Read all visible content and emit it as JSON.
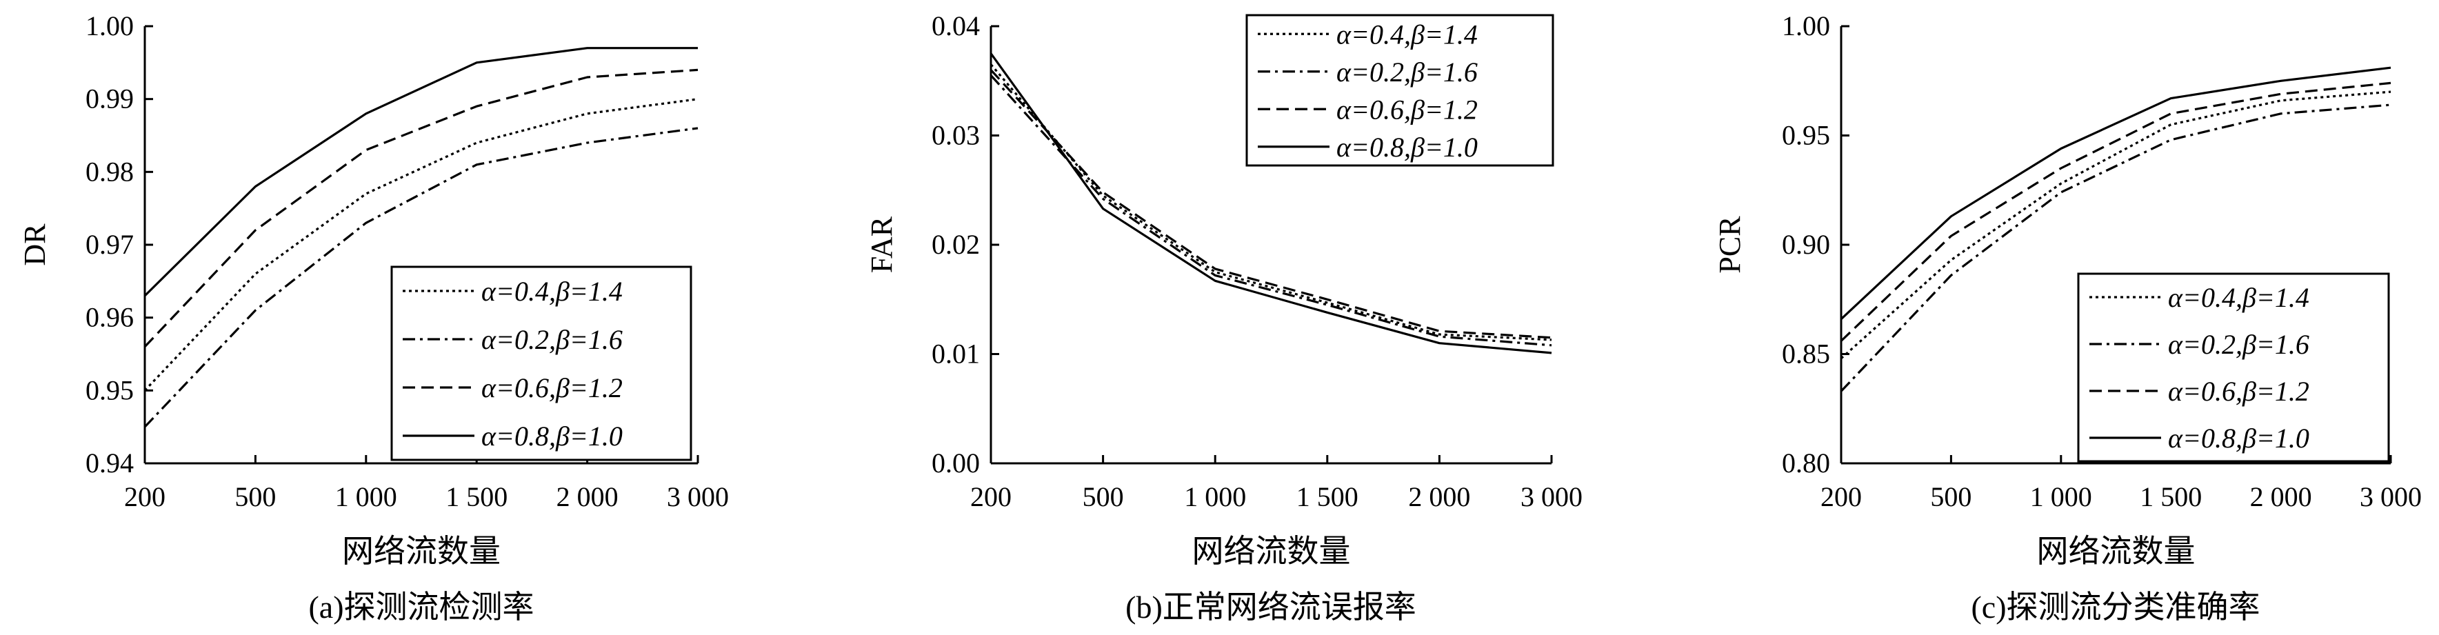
{
  "figure": {
    "background": "#ffffff",
    "line_color": "#000000"
  },
  "chart_data": [
    {
      "type": "line",
      "caption": "(a)探测流检测率",
      "xlabel": "网络流数量",
      "ylabel": "DR",
      "x": [
        "200",
        "500",
        "1 000",
        "1 500",
        "2 000",
        "3 000"
      ],
      "ylim": [
        0.94,
        1.0
      ],
      "yticks": [
        "0.94",
        "0.95",
        "0.96",
        "0.97",
        "0.98",
        "0.99",
        "1.00"
      ],
      "grid": false,
      "legend_position": "bottom-right",
      "series": [
        {
          "name": "α=0.4,β=1.4",
          "dash": "dotted",
          "values": [
            0.95,
            0.966,
            0.977,
            0.984,
            0.988,
            0.99
          ]
        },
        {
          "name": "α=0.2,β=1.6",
          "dash": "dashdot",
          "values": [
            0.945,
            0.961,
            0.973,
            0.981,
            0.984,
            0.986
          ]
        },
        {
          "name": "α=0.6,β=1.2",
          "dash": "dashed",
          "values": [
            0.956,
            0.972,
            0.983,
            0.989,
            0.993,
            0.994
          ]
        },
        {
          "name": "α=0.8,β=1.0",
          "dash": "solid",
          "values": [
            0.963,
            0.978,
            0.988,
            0.995,
            0.997,
            0.997
          ]
        }
      ]
    },
    {
      "type": "line",
      "caption": "(b)正常网络流误报率",
      "xlabel": "网络流数量",
      "ylabel": "FAR",
      "x": [
        "200",
        "500",
        "1 000",
        "1 500",
        "2 000",
        "3 000"
      ],
      "ylim": [
        0.0,
        0.04
      ],
      "yticks": [
        "0.00",
        "0.01",
        "0.02",
        "0.03",
        "0.04"
      ],
      "grid": false,
      "legend_position": "top-right",
      "series": [
        {
          "name": "α=0.4,β=1.4",
          "dash": "dotted",
          "values": [
            0.0365,
            0.0245,
            0.0175,
            0.0147,
            0.0118,
            0.0113
          ]
        },
        {
          "name": "α=0.2,β=1.6",
          "dash": "dashdot",
          "values": [
            0.0355,
            0.0242,
            0.0172,
            0.0145,
            0.0116,
            0.0108
          ]
        },
        {
          "name": "α=0.6,β=1.2",
          "dash": "dashed",
          "values": [
            0.036,
            0.0248,
            0.0178,
            0.015,
            0.0121,
            0.0115
          ]
        },
        {
          "name": "α=0.8,β=1.0",
          "dash": "solid",
          "values": [
            0.0375,
            0.0233,
            0.0167,
            0.0138,
            0.011,
            0.0101
          ]
        }
      ]
    },
    {
      "type": "line",
      "caption": "(c)探测流分类准确率",
      "xlabel": "网络流数量",
      "ylabel": "PCR",
      "x": [
        "200",
        "500",
        "1 000",
        "1 500",
        "2 000",
        "3 000"
      ],
      "ylim": [
        0.8,
        1.0
      ],
      "yticks": [
        "0.80",
        "0.85",
        "0.90",
        "0.95",
        "1.00"
      ],
      "grid": false,
      "legend_position": "bottom-right",
      "series": [
        {
          "name": "α=0.4,β=1.4",
          "dash": "dotted",
          "values": [
            0.848,
            0.893,
            0.928,
            0.955,
            0.966,
            0.97
          ]
        },
        {
          "name": "α=0.2,β=1.6",
          "dash": "dashdot",
          "values": [
            0.833,
            0.886,
            0.924,
            0.948,
            0.96,
            0.964
          ]
        },
        {
          "name": "α=0.6,β=1.2",
          "dash": "dashed",
          "values": [
            0.856,
            0.904,
            0.935,
            0.96,
            0.969,
            0.974
          ]
        },
        {
          "name": "α=0.8,β=1.0",
          "dash": "solid",
          "values": [
            0.866,
            0.913,
            0.944,
            0.967,
            0.975,
            0.981
          ]
        }
      ]
    }
  ]
}
